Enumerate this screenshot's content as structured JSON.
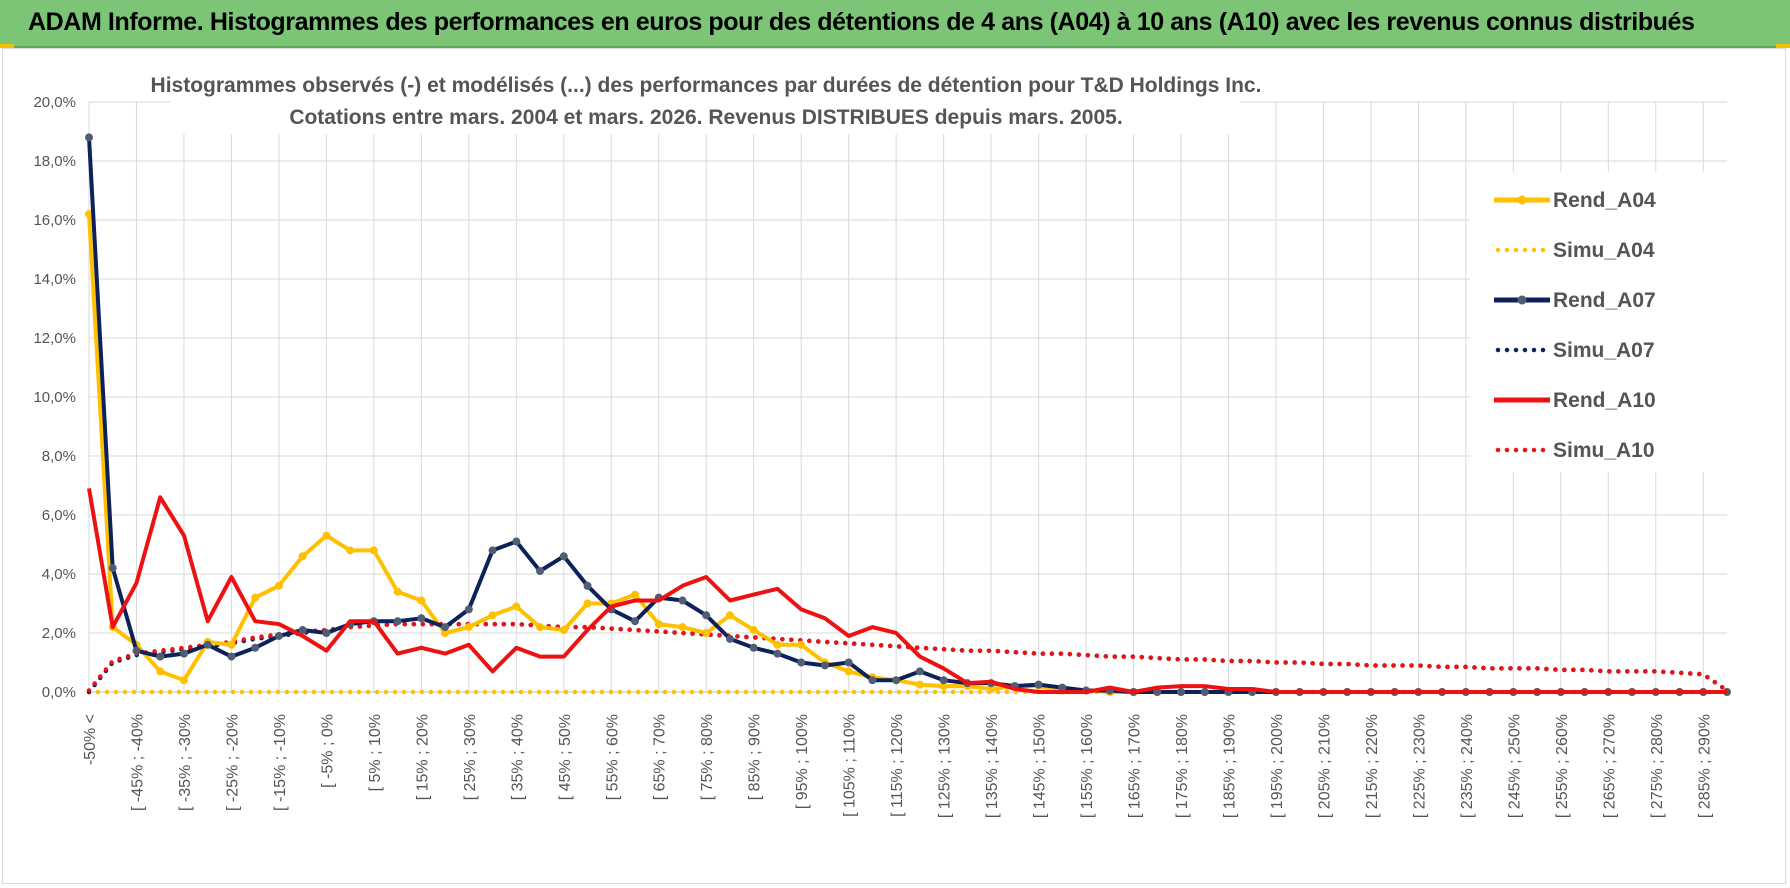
{
  "banner": {
    "title": "ADAM Informe. Histogrammes des performances en euros pour des détentions de 4 ans (A04) à 10 ans (A10) avec les revenus connus distribués"
  },
  "chart_data": {
    "type": "line",
    "title_line1": "Histogrammes observés (-) et modélisés (...) des performances par durées de détention pour T&D Holdings Inc.",
    "title_line2": "Cotations entre mars. 2004 et mars. 2026. Revenus DISTRIBUES depuis mars. 2005.",
    "ylim": [
      0,
      20
    ],
    "y_ticks": [
      "0,0%",
      "2,0%",
      "4,0%",
      "6,0%",
      "8,0%",
      "10,0%",
      "12,0%",
      "14,0%",
      "16,0%",
      "18,0%",
      "20,0%"
    ],
    "x_tick_labels": [
      "-50% <",
      "[ -45% ; -40%",
      "[ -35% ; -30%",
      "[ -25% ; -20%",
      "[ -15% ; -10%",
      "[ -5% ; 0%",
      "[ 5% ; 10%",
      "[ 15% ; 20%",
      "[ 25% ; 30%",
      "[ 35% ; 40%",
      "[ 45% ; 50%",
      "[ 55% ; 60%",
      "[ 65% ; 70%",
      "[ 75% ; 80%",
      "[ 85% ; 90%",
      "[ 95% ; 100%",
      "[ 105% ; 110%",
      "[ 115% ; 120%",
      "[ 125% ; 130%",
      "[ 135% ; 140%",
      "[ 145% ; 150%",
      "[ 155% ; 160%",
      "[ 165% ; 170%",
      "[ 175% ; 180%",
      "[ 185% ; 190%",
      "[ 195% ; 200%",
      "[ 205% ; 210%",
      "[ 215% ; 220%",
      "[ 225% ; 230%",
      "[ 235% ; 240%",
      "[ 245% ; 250%",
      "[ 255% ; 260%",
      "[ 265% ; 270%",
      "[ 275% ; 280%",
      "[ 285% ; 290%"
    ],
    "n_points": 70,
    "series": [
      {
        "name": "Rend_A04",
        "color": "#ffc000",
        "style": "solid",
        "values": [
          16.2,
          2.2,
          1.6,
          0.7,
          0.4,
          1.7,
          1.6,
          3.2,
          3.6,
          4.6,
          5.3,
          4.8,
          4.8,
          3.4,
          3.1,
          2.0,
          2.2,
          2.6,
          2.9,
          2.2,
          2.1,
          3.0,
          3.0,
          3.3,
          2.3,
          2.2,
          2.0,
          2.6,
          2.1,
          1.6,
          1.6,
          1.0,
          0.7,
          0.5,
          0.4,
          0.25,
          0.2,
          0.2,
          0.1,
          0.2,
          0.2,
          0.05,
          0.05,
          0,
          0,
          0,
          0,
          0,
          0,
          0,
          0,
          0,
          0,
          0,
          0,
          0,
          0,
          0,
          0,
          0,
          0,
          0,
          0,
          0,
          0,
          0,
          0,
          0,
          0,
          0
        ]
      },
      {
        "name": "Simu_A04",
        "color": "#ffc000",
        "style": "dotted",
        "values": [
          0,
          0,
          0,
          0,
          0,
          0,
          0,
          0,
          0,
          0,
          0,
          0,
          0,
          0,
          0,
          0,
          0,
          0,
          0,
          0,
          0,
          0,
          0,
          0,
          0,
          0,
          0,
          0,
          0,
          0,
          0,
          0,
          0,
          0,
          0,
          0,
          0,
          0,
          0,
          0,
          0,
          0,
          0,
          0,
          0,
          0,
          0,
          0,
          0,
          0,
          0,
          0,
          0,
          0,
          0,
          0,
          0,
          0,
          0,
          0,
          0,
          0,
          0,
          0,
          0,
          0,
          0,
          0,
          0,
          0
        ]
      },
      {
        "name": "Rend_A07",
        "color": "#0d2259",
        "style": "solid",
        "values": [
          18.8,
          4.2,
          1.4,
          1.2,
          1.3,
          1.6,
          1.2,
          1.5,
          1.9,
          2.1,
          2.0,
          2.3,
          2.4,
          2.4,
          2.5,
          2.2,
          2.8,
          4.8,
          5.1,
          4.1,
          4.6,
          3.6,
          2.8,
          2.4,
          3.2,
          3.1,
          2.6,
          1.8,
          1.5,
          1.3,
          1.0,
          0.9,
          1.0,
          0.4,
          0.4,
          0.7,
          0.4,
          0.3,
          0.3,
          0.2,
          0.25,
          0.15,
          0.05,
          0.05,
          0,
          0,
          0,
          0,
          0,
          0,
          0,
          0,
          0,
          0,
          0,
          0,
          0,
          0,
          0,
          0,
          0,
          0,
          0,
          0,
          0,
          0,
          0,
          0,
          0,
          0
        ]
      },
      {
        "name": "Simu_A07",
        "color": "#0d2259",
        "style": "dotted",
        "values": [
          0,
          1.0,
          1.25,
          1.35,
          1.45,
          1.55,
          1.65,
          1.8,
          1.9,
          2.0,
          2.1,
          2.2,
          2.25,
          2.3,
          2.3,
          2.3,
          2.3,
          2.3,
          2.3,
          2.25,
          2.2,
          2.2,
          2.15,
          2.1,
          2.05,
          2.0,
          1.95,
          1.9,
          1.85,
          1.8,
          1.75,
          1.7,
          1.65,
          1.6,
          1.55,
          1.5,
          1.45,
          1.4,
          1.4,
          1.35,
          1.3,
          1.3,
          1.25,
          1.2,
          1.2,
          1.15,
          1.1,
          1.1,
          1.05,
          1.05,
          1.0,
          1.0,
          0.95,
          0.95,
          0.9,
          0.9,
          0.9,
          0.85,
          0.85,
          0.8,
          0.8,
          0.8,
          0.75,
          0.75,
          0.7,
          0.7,
          0.7,
          0.65,
          0.6,
          0.05
        ]
      },
      {
        "name": "Rend_A10",
        "color": "#ee1111",
        "style": "solid",
        "values": [
          6.9,
          2.2,
          3.7,
          6.6,
          5.3,
          2.4,
          3.9,
          2.4,
          2.3,
          1.9,
          1.4,
          2.4,
          2.4,
          1.3,
          1.5,
          1.3,
          1.6,
          0.7,
          1.5,
          1.2,
          1.2,
          2.1,
          2.9,
          3.1,
          3.1,
          3.6,
          3.9,
          3.1,
          3.3,
          3.5,
          2.8,
          2.5,
          1.9,
          2.2,
          2.0,
          1.2,
          0.8,
          0.3,
          0.35,
          0.1,
          0,
          0,
          0,
          0.15,
          0,
          0.15,
          0.2,
          0.2,
          0.1,
          0.1,
          0,
          0,
          0,
          0,
          0,
          0,
          0,
          0,
          0,
          0,
          0,
          0,
          0,
          0,
          0,
          0,
          0,
          0,
          0,
          0
        ]
      },
      {
        "name": "Simu_A10",
        "color": "#ee1111",
        "style": "dotted",
        "values": [
          0.05,
          1.05,
          1.3,
          1.4,
          1.5,
          1.6,
          1.7,
          1.85,
          1.95,
          2.05,
          2.1,
          2.2,
          2.25,
          2.3,
          2.3,
          2.3,
          2.3,
          2.3,
          2.3,
          2.25,
          2.2,
          2.2,
          2.15,
          2.1,
          2.05,
          2.0,
          1.95,
          1.9,
          1.85,
          1.8,
          1.75,
          1.7,
          1.65,
          1.6,
          1.55,
          1.5,
          1.45,
          1.4,
          1.4,
          1.35,
          1.3,
          1.3,
          1.25,
          1.2,
          1.2,
          1.15,
          1.1,
          1.1,
          1.05,
          1.05,
          1.0,
          1.0,
          0.95,
          0.95,
          0.9,
          0.9,
          0.9,
          0.85,
          0.85,
          0.8,
          0.8,
          0.8,
          0.75,
          0.75,
          0.7,
          0.7,
          0.7,
          0.65,
          0.6,
          0.05
        ]
      }
    ]
  }
}
